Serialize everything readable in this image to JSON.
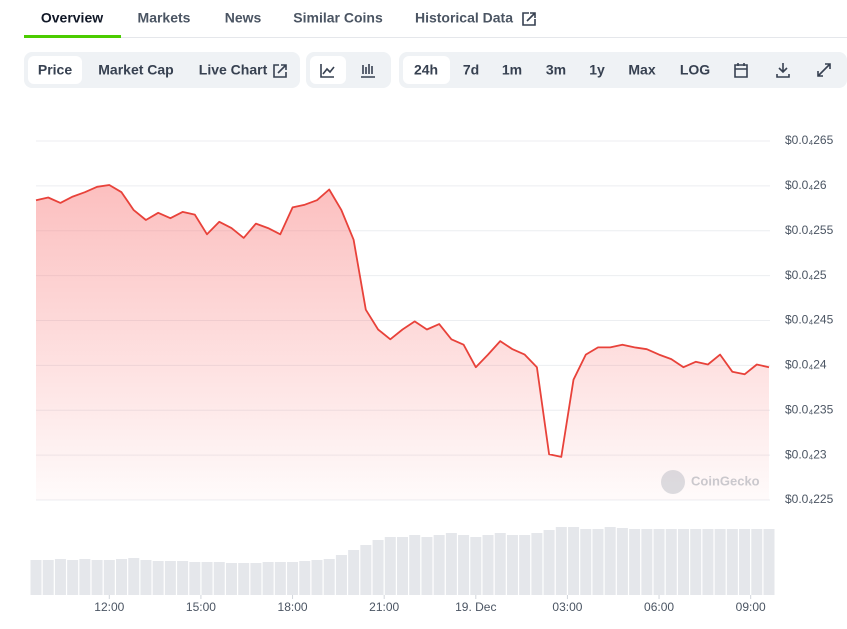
{
  "tabs": [
    "Overview",
    "Markets",
    "News",
    "Similar Coins",
    "Historical Data"
  ],
  "toolbar": {
    "metrics": [
      "Price",
      "Market Cap",
      "Live Chart"
    ],
    "ranges": [
      "24h",
      "7d",
      "1m",
      "3m",
      "1y",
      "Max",
      "LOG"
    ]
  },
  "watermark": "CoinGecko",
  "chart_data": {
    "type": "line",
    "x": [
      9.6,
      10,
      10.4,
      10.8,
      11.2,
      11.6,
      12,
      12.4,
      12.8,
      13.2,
      13.6,
      14,
      14.4,
      14.8,
      15.2,
      15.6,
      16,
      16.4,
      16.8,
      17.2,
      17.6,
      18,
      18.4,
      18.8,
      19.2,
      19.6,
      20,
      20.4,
      20.8,
      21.2,
      21.6,
      22,
      22.4,
      22.8,
      23.2,
      23.6,
      24,
      24.4,
      24.8,
      25.2,
      25.6,
      26,
      26.4,
      26.8,
      27.2,
      27.6,
      28,
      28.4,
      28.8,
      29.2,
      29.6,
      30,
      30.4,
      30.8,
      31.2,
      31.6,
      32,
      32.4,
      32.8,
      33.2,
      33.6
    ],
    "series": [
      {
        "color": "#e8423a",
        "values": [
          2.584e-05,
          2.587e-05,
          2.581e-05,
          2.588e-05,
          2.593e-05,
          2.599e-05,
          2.601e-05,
          2.593e-05,
          2.573e-05,
          2.562e-05,
          2.57e-05,
          2.564e-05,
          2.571e-05,
          2.568e-05,
          2.546e-05,
          2.56e-05,
          2.553e-05,
          2.542e-05,
          2.558e-05,
          2.553e-05,
          2.546e-05,
          2.576e-05,
          2.579e-05,
          2.584e-05,
          2.596e-05,
          2.573e-05,
          2.54e-05,
          2.462e-05,
          2.44e-05,
          2.429e-05,
          2.44e-05,
          2.449e-05,
          2.44e-05,
          2.446e-05,
          2.429e-05,
          2.423e-05,
          2.398e-05,
          2.412e-05,
          2.427e-05,
          2.418e-05,
          2.412e-05,
          2.398e-05,
          2.301e-05,
          2.298e-05,
          2.384e-05,
          2.412e-05,
          2.42e-05,
          2.42e-05,
          2.423e-05,
          2.42e-05,
          2.418e-05,
          2.412e-05,
          2.407e-05,
          2.398e-05,
          2.404e-05,
          2.401e-05,
          2.412e-05,
          2.393e-05,
          2.39e-05,
          2.401e-05,
          2.398e-05
        ]
      }
    ],
    "volume": [
      35,
      35,
      36,
      35,
      36,
      35,
      35,
      36,
      37,
      35,
      34,
      34,
      34,
      33,
      33,
      33,
      32,
      32,
      32,
      33,
      33,
      33,
      34,
      35,
      36,
      40,
      45,
      50,
      55,
      58,
      58,
      60,
      58,
      60,
      62,
      60,
      58,
      60,
      62,
      60,
      60,
      62,
      65,
      68,
      68,
      66,
      66,
      68,
      67,
      66,
      66,
      66,
      66,
      66,
      66,
      66,
      66,
      66,
      66,
      66,
      66
    ],
    "xlim": [
      9.6,
      33.6
    ],
    "xticks": [
      {
        "value": 12,
        "label": "12:00"
      },
      {
        "value": 15,
        "label": "15:00"
      },
      {
        "value": 18,
        "label": "18:00"
      },
      {
        "value": 21,
        "label": "21:00"
      },
      {
        "value": 24,
        "label": "19. Dec"
      },
      {
        "value": 27,
        "label": "03:00"
      },
      {
        "value": 30,
        "label": "06:00"
      },
      {
        "value": 33,
        "label": "09:00"
      }
    ],
    "ylim": [
      2.25e-05,
      2.65e-05
    ],
    "yticks": [
      {
        "value": 2.25e-05,
        "label": "$0.0₄225"
      },
      {
        "value": 2.3e-05,
        "label": "$0.0₄23"
      },
      {
        "value": 2.35e-05,
        "label": "$0.0₄235"
      },
      {
        "value": 2.4e-05,
        "label": "$0.0₄24"
      },
      {
        "value": 2.45e-05,
        "label": "$0.0₄245"
      },
      {
        "value": 2.5e-05,
        "label": "$0.0₄25"
      },
      {
        "value": 2.55e-05,
        "label": "$0.0₄255"
      },
      {
        "value": 2.6e-05,
        "label": "$0.0₄26"
      },
      {
        "value": 2.65e-05,
        "label": "$0.0₄265"
      }
    ],
    "grid": true
  }
}
